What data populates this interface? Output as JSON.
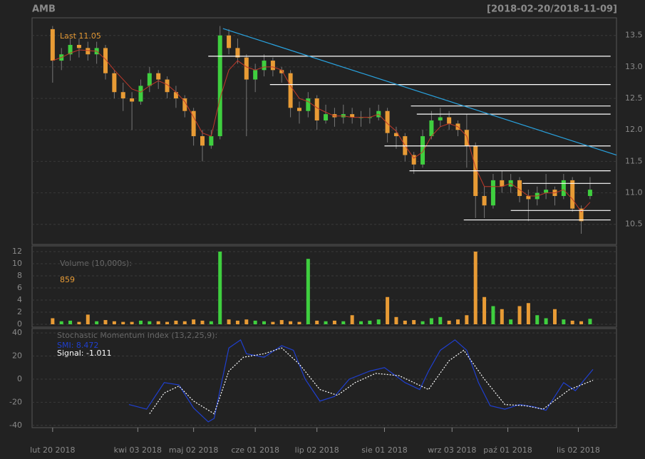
{
  "chart_data": [
    {
      "type": "candlestick",
      "title": "AMB",
      "subtitle": "[2018-02-20/2018-11-09]",
      "annotation": "Last 11.05",
      "xlim": [
        -7,
        192
      ],
      "ylim": [
        10.18,
        13.78
      ],
      "yticks": [
        10.5,
        {
          "value": 11,
          "label": "11.0"
        },
        11.5,
        {
          "value": 12,
          "label": "12.0"
        },
        12.5,
        {
          "value": 13,
          "label": "13.0"
        },
        13.5
      ],
      "grid": true,
      "up_color": "#3fcf3f",
      "down_color": "#e89b35",
      "x": [
        0,
        3,
        6,
        9,
        12,
        15,
        18,
        21,
        24,
        27,
        30,
        33,
        36,
        39,
        42,
        45,
        48,
        51,
        54,
        57,
        60,
        63,
        66,
        69,
        72,
        75,
        78,
        81,
        84,
        87,
        90,
        93,
        96,
        99,
        102,
        105,
        108,
        111,
        114,
        117,
        120,
        123,
        126,
        129,
        132,
        135,
        138,
        141,
        144,
        147,
        150,
        153,
        156,
        159,
        162,
        165,
        168,
        171,
        174,
        177,
        180,
        183
      ],
      "open": [
        13.6,
        13.1,
        13.2,
        13.35,
        13.3,
        13.2,
        13.3,
        12.9,
        12.6,
        12.5,
        12.45,
        12.7,
        12.9,
        12.8,
        12.6,
        12.5,
        12.3,
        11.9,
        11.75,
        11.9,
        13.5,
        13.3,
        13.15,
        12.8,
        12.95,
        13.1,
        12.95,
        12.9,
        12.35,
        12.3,
        12.5,
        12.15,
        12.25,
        12.2,
        12.25,
        12.2,
        12.2,
        12.2,
        12.3,
        11.95,
        11.9,
        11.6,
        11.45,
        11.9,
        12.15,
        12.2,
        12.1,
        12.0,
        11.75,
        10.95,
        10.8,
        11.2,
        11.1,
        11.2,
        10.95,
        10.9,
        11.0,
        11.05,
        10.95,
        11.2,
        10.75,
        10.95
      ],
      "high": [
        13.65,
        13.3,
        13.45,
        13.45,
        13.4,
        13.4,
        13.35,
        12.95,
        12.75,
        12.6,
        12.8,
        13.0,
        12.95,
        12.85,
        12.7,
        12.55,
        12.35,
        12.0,
        12.0,
        13.65,
        13.6,
        13.45,
        13.2,
        13.05,
        13.2,
        13.15,
        13.0,
        12.95,
        12.45,
        12.6,
        12.55,
        12.4,
        12.35,
        12.4,
        12.35,
        12.3,
        12.35,
        12.4,
        12.35,
        12.05,
        11.95,
        11.65,
        12.0,
        12.3,
        12.35,
        12.3,
        12.15,
        12.25,
        11.8,
        11.1,
        11.3,
        11.35,
        11.3,
        11.25,
        11.05,
        11.1,
        11.3,
        11.1,
        11.3,
        11.25,
        10.8,
        11.25
      ],
      "low": [
        12.75,
        12.95,
        13.1,
        13.15,
        13.1,
        13.05,
        12.8,
        12.5,
        12.3,
        12.0,
        12.4,
        12.6,
        12.65,
        12.5,
        12.35,
        12.2,
        11.75,
        11.5,
        11.7,
        11.85,
        13.2,
        13.05,
        11.9,
        12.6,
        12.85,
        12.85,
        12.75,
        12.2,
        12.1,
        12.2,
        12.0,
        12.1,
        12.05,
        12.1,
        12.1,
        12.05,
        12.1,
        12.15,
        11.8,
        11.7,
        11.5,
        11.3,
        11.4,
        11.85,
        12.05,
        12.0,
        11.9,
        11.4,
        10.6,
        10.6,
        10.75,
        11.0,
        11.0,
        10.85,
        10.55,
        10.8,
        10.9,
        10.8,
        10.9,
        10.7,
        10.35,
        10.9
      ],
      "close": [
        13.1,
        13.2,
        13.35,
        13.3,
        13.2,
        13.3,
        12.9,
        12.6,
        12.5,
        12.45,
        12.7,
        12.9,
        12.8,
        12.6,
        12.5,
        12.3,
        11.9,
        11.75,
        11.9,
        13.5,
        13.3,
        13.15,
        12.8,
        12.95,
        13.1,
        12.95,
        12.9,
        12.35,
        12.3,
        12.5,
        12.15,
        12.25,
        12.2,
        12.25,
        12.2,
        12.2,
        12.2,
        12.3,
        11.95,
        11.9,
        11.6,
        11.45,
        11.9,
        12.15,
        12.2,
        12.1,
        12.0,
        11.75,
        10.95,
        10.8,
        11.2,
        11.1,
        11.2,
        10.95,
        10.9,
        11.0,
        11.05,
        10.95,
        11.2,
        10.75,
        10.55,
        11.05
      ],
      "ma": {
        "color": "#c0392b",
        "values": [
          13.1,
          13.15,
          13.22,
          13.27,
          13.26,
          13.25,
          13.12,
          12.95,
          12.8,
          12.65,
          12.6,
          12.7,
          12.78,
          12.72,
          12.6,
          12.45,
          12.2,
          11.95,
          11.9,
          12.5,
          12.95,
          13.1,
          13.0,
          12.95,
          13.0,
          13.0,
          12.95,
          12.7,
          12.5,
          12.45,
          12.35,
          12.28,
          12.22,
          12.22,
          12.2,
          12.2,
          12.2,
          12.25,
          12.1,
          11.98,
          11.75,
          11.55,
          11.65,
          11.9,
          12.05,
          12.1,
          12.05,
          11.9,
          11.4,
          11.1,
          11.1,
          11.1,
          11.15,
          11.05,
          10.95,
          10.95,
          11.0,
          11.0,
          11.05,
          10.9,
          10.7,
          10.85
        ]
      },
      "trendline": {
        "color": "#29a3e0",
        "x": [
          58,
          192
        ],
        "y": [
          13.61,
          11.6
        ]
      },
      "levels": {
        "color": "#ffffff",
        "end": 190,
        "from": [
          53,
          74,
          122,
          124,
          113,
          121.5,
          160,
          156,
          140
        ],
        "values": [
          13.17,
          12.72,
          12.38,
          12.25,
          11.745,
          11.35,
          11.15,
          10.72,
          10.57
        ]
      }
    },
    {
      "type": "bar",
      "title": "Volume (10,000s):",
      "annotation": "859",
      "xlim": [
        -7,
        192
      ],
      "ylim": [
        -0.47,
        12.94
      ],
      "yticks": [
        0,
        2,
        4,
        6,
        8,
        10,
        12
      ],
      "grid": true,
      "x": [
        0,
        3,
        6,
        9,
        12,
        15,
        18,
        21,
        24,
        27,
        30,
        33,
        36,
        39,
        42,
        45,
        48,
        51,
        54,
        57,
        60,
        63,
        66,
        69,
        72,
        75,
        78,
        81,
        84,
        87,
        90,
        93,
        96,
        99,
        102,
        105,
        108,
        111,
        114,
        117,
        120,
        123,
        126,
        129,
        132,
        135,
        138,
        141,
        144,
        147,
        150,
        153,
        156,
        159,
        162,
        165,
        168,
        171,
        174,
        177,
        180,
        183
      ],
      "values": [
        1,
        0.5,
        0.6,
        0.4,
        1.6,
        0.5,
        0.7,
        0.5,
        0.4,
        0.4,
        0.6,
        0.5,
        0.5,
        0.4,
        0.6,
        0.5,
        0.8,
        0.6,
        0.5,
        12,
        0.8,
        0.6,
        0.8,
        0.6,
        0.5,
        0.4,
        0.7,
        0.5,
        0.4,
        10.8,
        0.6,
        0.5,
        0.6,
        0.5,
        1.5,
        0.5,
        0.6,
        0.8,
        4.5,
        1.2,
        0.6,
        0.7,
        0.5,
        1.0,
        1.2,
        0.6,
        0.8,
        1.5,
        12,
        4.5,
        3.0,
        2.5,
        0.8,
        3.0,
        3.5,
        1.5,
        1.0,
        2.5,
        0.8,
        0.6,
        0.5,
        0.9
      ]
    },
    {
      "type": "line",
      "title": "Stochastic Momentum Index (13,2,25,9):",
      "xlim": [
        -7,
        192
      ],
      "ylim": [
        -42,
        43.8
      ],
      "yticks": [
        -40,
        -20,
        0,
        20,
        40
      ],
      "grid": true,
      "xticks": [
        {
          "value": 0,
          "label": "lut 20 2018"
        },
        {
          "value": 29,
          "label": "kwi 03 2018"
        },
        {
          "value": 48,
          "label": "maj 02 2018"
        },
        {
          "value": 69,
          "label": "cze 01 2018"
        },
        {
          "value": 90,
          "label": "lip 02 2018"
        },
        {
          "value": 113,
          "label": "sie 01 2018"
        },
        {
          "value": 136,
          "label": "wrz 03 2018"
        },
        {
          "value": 155,
          "label": "paź 01 2018"
        },
        {
          "value": 179,
          "label": "lis 02 2018"
        }
      ],
      "series": [
        {
          "label": "SMI: 8.472",
          "color": "#1f3fcf",
          "dashed": false,
          "x": [
            26,
            32,
            38,
            43,
            48,
            53,
            55,
            60,
            64,
            66,
            72,
            78,
            82,
            86,
            91,
            96,
            101,
            108,
            113,
            120,
            125,
            128,
            132,
            137,
            141,
            145,
            149,
            154,
            159,
            164,
            168,
            174,
            178,
            184
          ],
          "values": [
            -22,
            -26,
            -3,
            -5,
            -25,
            -37,
            -34,
            27,
            34,
            22,
            19,
            29,
            25,
            0,
            -19,
            -15,
            0,
            7,
            10,
            -3,
            -9,
            7,
            25,
            34,
            25,
            -3,
            -23,
            -26,
            -22,
            -24,
            -27,
            -3,
            -10,
            8.472
          ]
        },
        {
          "label": "Signal: -1.011",
          "color": "#ffffff",
          "dashed": true,
          "x": [
            33,
            38,
            43,
            48,
            55,
            60,
            65,
            72,
            78,
            84,
            91,
            97,
            103,
            110,
            118,
            128,
            135,
            140,
            147,
            154,
            161,
            167,
            176,
            184
          ],
          "values": [
            -30,
            -12,
            -6,
            -19,
            -30,
            7,
            19,
            22,
            27,
            13,
            -9,
            -14,
            -3,
            5,
            3,
            -9,
            16,
            25,
            0,
            -22,
            -23,
            -26,
            -9,
            -1.011
          ]
        }
      ]
    }
  ]
}
